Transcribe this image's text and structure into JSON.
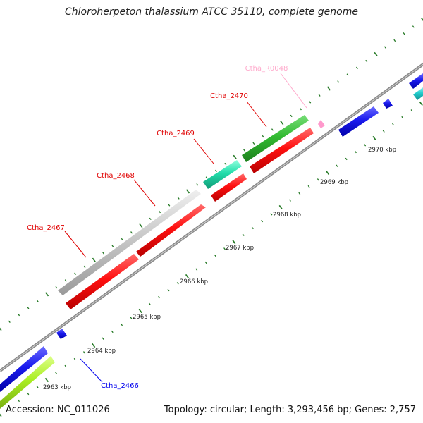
{
  "title": "Chloroherpeton thalassium ATCC 35110, complete genome",
  "footer": {
    "accession": "Accession: NC_011026",
    "summary": "Topology: circular; Length: 3,293,456 bp; Genes: 2,757"
  },
  "ticks": [
    "2963 kbp",
    "2964 kbp",
    "2965 kbp",
    "2966 kbp",
    "2967 kbp",
    "2968 kbp",
    "2969 kbp",
    "2970 kbp"
  ],
  "genes": [
    {
      "name": "Ctha_R0048",
      "color": "#ffaacc"
    },
    {
      "name": "Ctha_2470",
      "color": "#ff0000"
    },
    {
      "name": "Ctha_2469",
      "color": "#ff0000"
    },
    {
      "name": "Ctha_2468",
      "color": "#ff0000"
    },
    {
      "name": "Ctha_2467",
      "color": "#ff0000"
    },
    {
      "name": "Ctha_2466",
      "color": "#0000ff"
    }
  ],
  "colors": {
    "red": "#ff1010",
    "green": "#33bb33",
    "teal": "#22ddaa",
    "gray": "#c8c8c8",
    "blue": "#1a1aee",
    "lime": "#aaee22",
    "cyan": "#22cccc",
    "pink": "#ff99cc",
    "backbone": "#888888",
    "dots": "#227722"
  }
}
